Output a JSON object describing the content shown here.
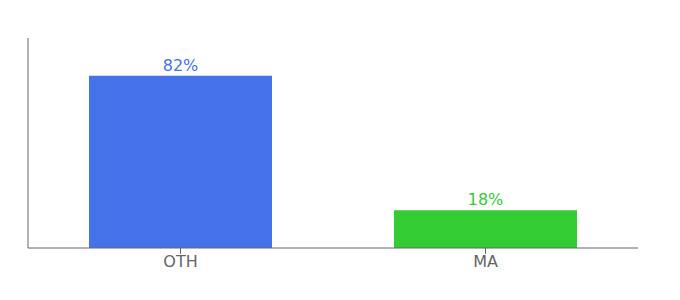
{
  "chart_data": {
    "type": "bar",
    "categories": [
      "OTH",
      "MA"
    ],
    "values": [
      82,
      18
    ],
    "value_labels": [
      "82%",
      "18%"
    ],
    "colors": [
      "#4472e8",
      "#33cc33"
    ],
    "ylim": [
      0,
      100
    ],
    "data_labels": true,
    "tick_labels": "x"
  }
}
